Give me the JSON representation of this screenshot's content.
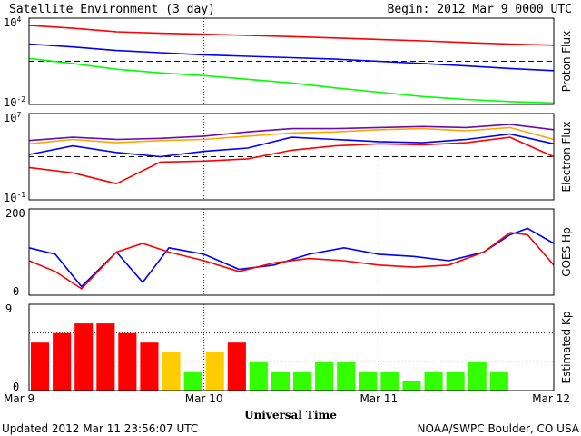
{
  "header": {
    "title": "Satellite Environment (3 day)",
    "begin": "Begin:  2012 Mar 9 0000 UTC"
  },
  "footer": {
    "updated": "Updated 2012 Mar 11 23:56:07 UTC",
    "credit": "NOAA/SWPC Boulder, CO USA"
  },
  "colors": {
    "red": "#ff0000",
    "blue": "#0000ff",
    "green": "#00ff00",
    "orange": "#ffa500",
    "purple": "#6a0dad",
    "kp_red": "#ff0000",
    "kp_yellow": "#ffcc00",
    "kp_green": "#33ff00"
  },
  "chart_data": [
    {
      "type": "line",
      "id": "proton",
      "ylabel": "Proton Flux",
      "yscale": "log",
      "ylim_exp": [
        -2,
        4
      ],
      "ytick_base": "10",
      "ytick_exps": [
        "4",
        "-2"
      ],
      "x_days": [
        0,
        0.25,
        0.5,
        0.75,
        1,
        1.25,
        1.5,
        1.75,
        2,
        2.25,
        2.5,
        2.75,
        3
      ],
      "threshold_exp": 1,
      "series": [
        {
          "color": "red",
          "log_values": [
            3.5,
            3.3,
            3.05,
            2.95,
            2.88,
            2.8,
            2.72,
            2.62,
            2.52,
            2.42,
            2.3,
            2.2,
            2.12
          ]
        },
        {
          "color": "blue",
          "log_values": [
            2.2,
            2.0,
            1.75,
            1.6,
            1.45,
            1.35,
            1.25,
            1.15,
            1.0,
            0.85,
            0.68,
            0.5,
            0.35
          ]
        },
        {
          "color": "green",
          "log_values": [
            1.2,
            0.85,
            0.45,
            0.2,
            0.0,
            -0.25,
            -0.5,
            -0.85,
            -1.15,
            -1.45,
            -1.65,
            -1.8,
            -1.9
          ]
        }
      ]
    },
    {
      "type": "line",
      "id": "electron",
      "ylabel": "Electron Flux",
      "yscale": "log",
      "ylim_exp": [
        -1,
        7
      ],
      "ytick_base": "10",
      "ytick_exps": [
        "7",
        "-1"
      ],
      "x_days": [
        0,
        0.25,
        0.5,
        0.75,
        1,
        1.25,
        1.5,
        1.75,
        2,
        2.25,
        2.5,
        2.75,
        3
      ],
      "threshold_exp": 3,
      "series": [
        {
          "color": "purple",
          "log_values": [
            4.5,
            4.8,
            4.6,
            4.7,
            4.9,
            5.3,
            5.6,
            5.6,
            5.7,
            5.8,
            5.7,
            6.0,
            5.5
          ]
        },
        {
          "color": "orange",
          "log_values": [
            4.2,
            4.6,
            4.3,
            4.5,
            4.6,
            4.9,
            5.2,
            5.3,
            5.5,
            5.6,
            5.4,
            5.7,
            4.6
          ]
        },
        {
          "color": "blue",
          "log_values": [
            3.2,
            4.0,
            3.4,
            3.0,
            3.5,
            3.8,
            4.8,
            4.6,
            4.4,
            4.3,
            4.6,
            5.1,
            4.2
          ]
        },
        {
          "color": "red",
          "log_values": [
            2.0,
            1.5,
            0.5,
            2.5,
            2.6,
            2.8,
            3.6,
            4.0,
            4.2,
            4.1,
            4.3,
            4.8,
            3.0
          ]
        }
      ]
    },
    {
      "type": "line",
      "id": "hp",
      "ylabel": "GOES Hp",
      "ylim": [
        0,
        200
      ],
      "yticks": [
        "200",
        "0"
      ],
      "x_days": [
        0,
        0.15,
        0.3,
        0.5,
        0.65,
        0.8,
        1.0,
        1.2,
        1.4,
        1.6,
        1.8,
        2.0,
        2.2,
        2.4,
        2.6,
        2.75,
        2.85,
        3
      ],
      "series": [
        {
          "color": "blue",
          "values": [
            110,
            95,
            20,
            100,
            30,
            110,
            95,
            60,
            70,
            95,
            110,
            95,
            90,
            80,
            100,
            140,
            155,
            120
          ]
        },
        {
          "color": "red",
          "values": [
            80,
            55,
            15,
            100,
            120,
            100,
            80,
            55,
            75,
            85,
            80,
            70,
            65,
            70,
            100,
            145,
            140,
            70
          ]
        }
      ]
    },
    {
      "type": "bar",
      "id": "kp",
      "ylabel": "Estimated Kp",
      "ylim": [
        0,
        9
      ],
      "yticks": [
        "9",
        "0"
      ],
      "values": [
        5,
        6,
        7,
        7,
        6,
        5,
        4,
        2,
        4,
        5,
        3,
        2,
        2,
        3,
        3,
        2,
        2,
        1,
        2,
        2,
        3,
        2
      ],
      "colors": [
        "kp_red",
        "kp_red",
        "kp_red",
        "kp_red",
        "kp_red",
        "kp_red",
        "kp_yellow",
        "kp_green",
        "kp_yellow",
        "kp_red",
        "kp_green",
        "kp_green",
        "kp_green",
        "kp_green",
        "kp_green",
        "kp_green",
        "kp_green",
        "kp_green",
        "kp_green",
        "kp_green",
        "kp_green",
        "kp_green"
      ]
    }
  ],
  "xaxis": {
    "label": "Universal Time",
    "ticks": [
      "Mar 9",
      "Mar 10",
      "Mar 11",
      "Mar 12"
    ]
  }
}
